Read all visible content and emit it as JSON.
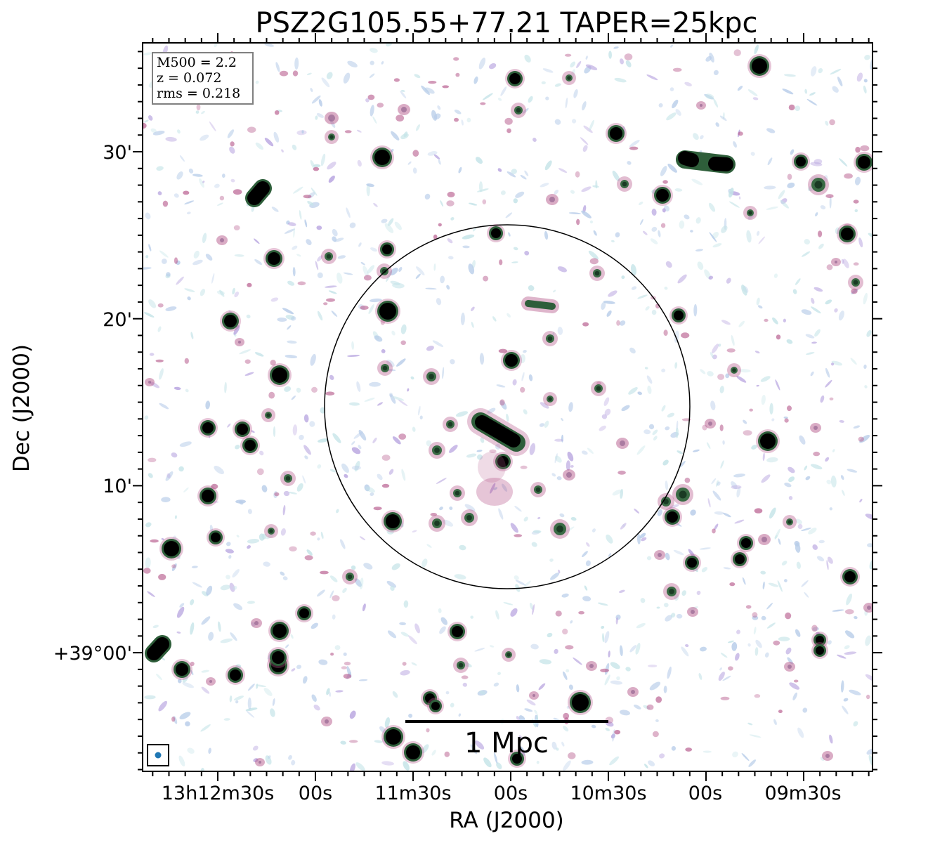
{
  "title": "PSZ2G105.55+77.21 TAPER=25kpc",
  "info_box": {
    "m500": "M500 = 2.2",
    "z": "z = 0.072",
    "rms": "rms = 0.218"
  },
  "xlabel": "RA (J2000)",
  "ylabel": "Dec (J2000)",
  "ra_ticks": [
    "13h12m30s",
    "00s",
    "11m30s",
    "00s",
    "10m30s",
    "00s",
    "09m30s"
  ],
  "dec_ticks": [
    "30'",
    "20'",
    "10'",
    "+39°00'"
  ],
  "scale_bar_label": "1 Mpc",
  "colors": {
    "source_core": "#000000",
    "source_mid": "#2e5e3a",
    "source_halo": "#b65a8c",
    "noise_light": "#b8cde9",
    "noise_faint": "#c5e4e8",
    "noise_purple": "#b9a6e0",
    "beam": "#1f77b4",
    "circle": "#000000"
  }
}
